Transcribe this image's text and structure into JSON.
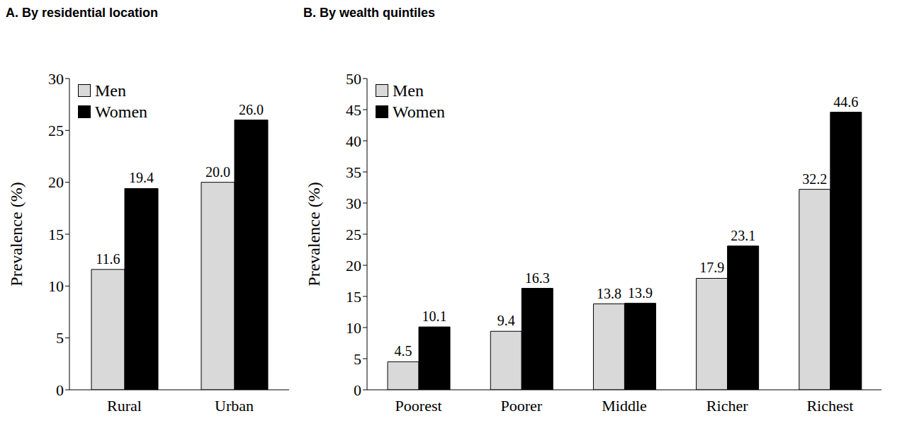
{
  "chart_data": [
    {
      "type": "bar",
      "title": "A. By residential location",
      "y_label": "Prevalence (%)",
      "categories": [
        "Rural",
        "Urban"
      ],
      "series": [
        {
          "name": "Men",
          "color": "#d9d9d9",
          "values": [
            11.6,
            20.0
          ],
          "value_labels": [
            "11.6",
            "20.0"
          ]
        },
        {
          "name": "Women",
          "color": "#000000",
          "values": [
            19.4,
            26.0
          ],
          "value_labels": [
            "19.4",
            "26.0"
          ]
        }
      ],
      "ylim": [
        0,
        30
      ],
      "yticks": [
        0,
        5,
        10,
        15,
        20,
        25,
        30
      ],
      "grid": false,
      "legend": "upper left",
      "data_labels": true
    },
    {
      "type": "bar",
      "title": "B. By wealth quintiles",
      "y_label": "Prevalence (%)",
      "categories": [
        "Poorest",
        "Poorer",
        "Middle",
        "Richer",
        "Richest"
      ],
      "series": [
        {
          "name": "Men",
          "color": "#d9d9d9",
          "values": [
            4.5,
            9.4,
            13.8,
            17.9,
            32.2
          ],
          "value_labels": [
            "4.5",
            "9.4",
            "13.8",
            "17.9",
            "32.2"
          ]
        },
        {
          "name": "Women",
          "color": "#000000",
          "values": [
            10.1,
            16.3,
            13.9,
            23.1,
            44.6
          ],
          "value_labels": [
            "10.1",
            "16.3",
            "13.9",
            "23.1",
            "44.6"
          ]
        }
      ],
      "ylim": [
        0,
        50
      ],
      "yticks": [
        0,
        5,
        10,
        15,
        20,
        25,
        30,
        35,
        40,
        45,
        50
      ],
      "grid": false,
      "legend": "upper left",
      "data_labels": true
    }
  ]
}
